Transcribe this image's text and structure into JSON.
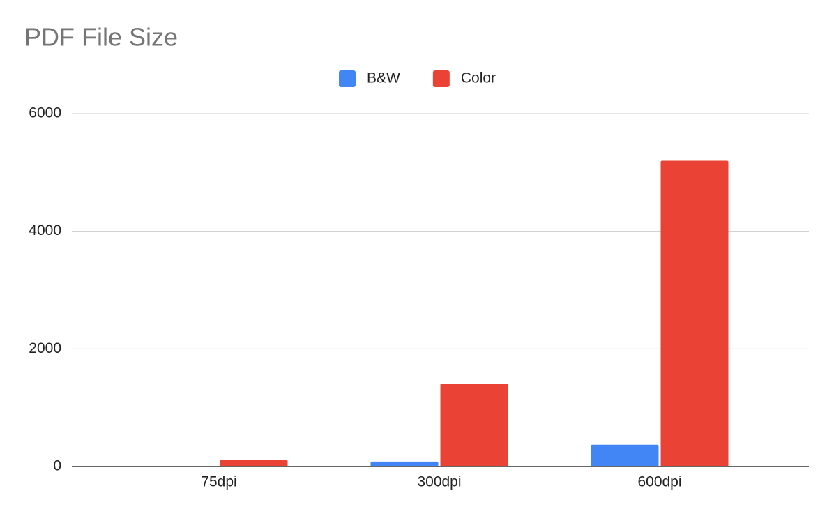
{
  "chart_data": {
    "type": "bar",
    "title": "PDF File Size",
    "categories": [
      "75dpi",
      "300dpi",
      "600dpi"
    ],
    "series": [
      {
        "name": "B&W",
        "color": "#4285f4",
        "values": [
          5,
          85,
          370
        ]
      },
      {
        "name": "Color",
        "color": "#ea4335",
        "values": [
          110,
          1410,
          5200
        ]
      }
    ],
    "ylim": [
      0,
      6000
    ],
    "yticks": [
      0,
      2000,
      4000,
      6000
    ],
    "grid": true,
    "legend": "top"
  }
}
